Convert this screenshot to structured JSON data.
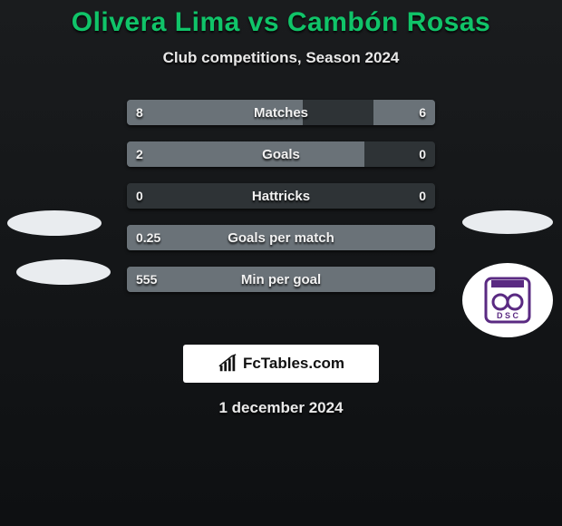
{
  "title": "Olivera Lima vs Cambón Rosas",
  "subtitle": "Club competitions, Season 2024",
  "title_color": "#10c469",
  "text_color": "#e8e8e8",
  "bar_bg": "#2e3336",
  "bar_fill": "#6a7278",
  "stats": [
    {
      "label": "Matches",
      "left_value": "8",
      "right_value": "6",
      "left_pct": 57,
      "right_pct": 20
    },
    {
      "label": "Goals",
      "left_value": "2",
      "right_value": "0",
      "left_pct": 77,
      "right_pct": 0
    },
    {
      "label": "Hattricks",
      "left_value": "0",
      "right_value": "0",
      "left_pct": 0,
      "right_pct": 0
    },
    {
      "label": "Goals per match",
      "left_value": "0.25",
      "right_value": "",
      "left_pct": 100,
      "right_pct": 0
    },
    {
      "label": "Min per goal",
      "left_value": "555",
      "right_value": "",
      "left_pct": 100,
      "right_pct": 0
    }
  ],
  "logo_text": "FcTables.com",
  "date": "1 december 2024",
  "badge": {
    "outer_bg": "#ffffff",
    "shield_purple": "#5a2a82",
    "shield_white": "#ffffff",
    "ring_color": "#444444"
  }
}
